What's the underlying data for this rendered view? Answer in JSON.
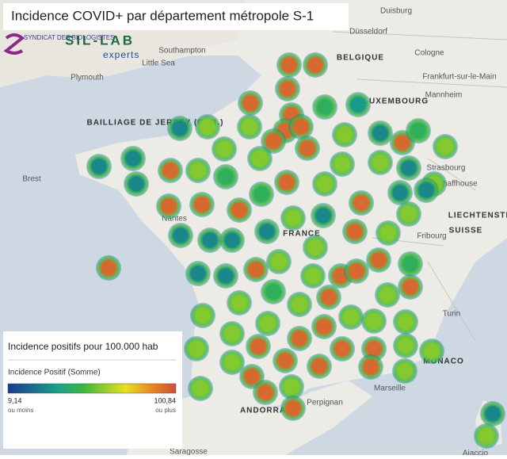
{
  "header": {
    "title": "Incidence COVID+ par département métropole S-1",
    "logo_1": "SYNDICAT DES BIOLOGISTES",
    "logo_2_top": "SIL-LAB",
    "logo_2_bottom": "experts"
  },
  "legend": {
    "title": "Incidence positifs pour 100.000 hab",
    "subtitle": "Incidence Positif (Somme)",
    "min": {
      "value": 9.14,
      "label": "9,14"
    },
    "min_note": "ou moins",
    "max": {
      "value": 100.84,
      "label": "100,84"
    },
    "max_note": "ou plus"
  },
  "map_labels": [
    "BELGIQUE",
    "LUXEMBOURG",
    "FRANCE",
    "SUISSE",
    "LIECHTENSTEIN",
    "MONACO",
    "ANDORRA",
    "BAILLIAGE DE JERSEY (G.-B.)",
    "Düsseldorf",
    "Duisburg",
    "Cologne",
    "Frankfurt-sur-le-Main",
    "Mannheim",
    "Southampton",
    "Plymouth",
    "Little Sea",
    "Strasbourg",
    "Nantes",
    "Fribourg",
    "Turin",
    "Marseille",
    "Perpignan",
    "Saragosse",
    "Ajaccio",
    "Schaffhouse",
    "Brest"
  ],
  "points": {
    "values": [
      95,
      95,
      95,
      95,
      45,
      35,
      95,
      60,
      30,
      60,
      95,
      95,
      95,
      95,
      60,
      30,
      95,
      45,
      60,
      30,
      30,
      30,
      95,
      60,
      45,
      60,
      60,
      95,
      60,
      60,
      60,
      30,
      60,
      30,
      30,
      95,
      60,
      95,
      95,
      95,
      45,
      60,
      30,
      30,
      30,
      30,
      30,
      60,
      95,
      60,
      95,
      30,
      30,
      95,
      60,
      60,
      95,
      95,
      95,
      45,
      95,
      60,
      60,
      60,
      45,
      60,
      95,
      60,
      60,
      60,
      60,
      60,
      95,
      95,
      95,
      95,
      95,
      60,
      60,
      60,
      60,
      95,
      95,
      95,
      60,
      60,
      95,
      95,
      60,
      95,
      30,
      60
    ]
  }
}
